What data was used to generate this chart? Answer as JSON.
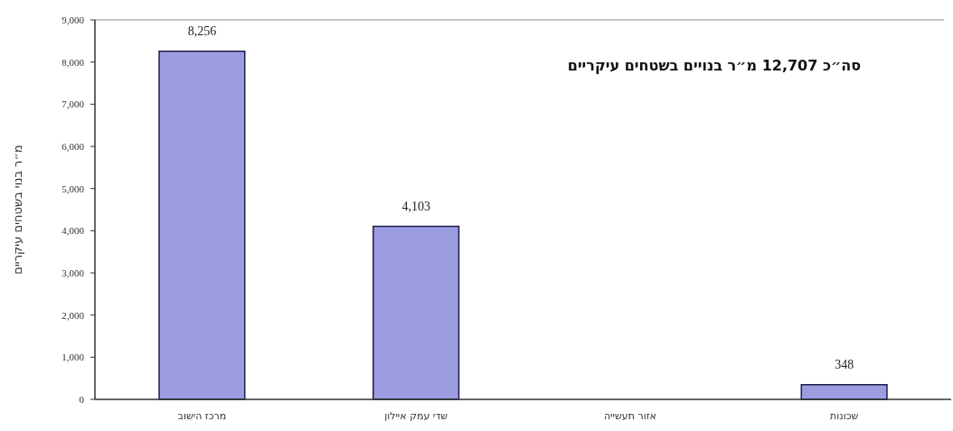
{
  "chart_data": {
    "type": "bar",
    "ylabel": "מ״ר בנוי בשטחים עיקריים",
    "annotations": [
      "סה״כ 12,707 מ״ר בנויים בשטחים עיקריים"
    ],
    "categories": [
      "מרכז הישוב",
      "שדי עמק איילון",
      "אזור תעשייה",
      "שכונות"
    ],
    "values": [
      8256,
      4103,
      null,
      348
    ],
    "value_labels": [
      "8,256",
      "4,103",
      null,
      "348"
    ],
    "color": "#9c9ce0",
    "ylim": [
      0,
      9000
    ],
    "yticks": [
      0,
      {
        "value": 1000,
        "label": "1,000"
      },
      {
        "value": 2000,
        "label": "2,000"
      },
      {
        "value": 3000,
        "label": "3,000"
      },
      {
        "value": 4000,
        "label": "4,000"
      },
      {
        "value": 5000,
        "label": "5,000"
      },
      {
        "value": 6000,
        "label": "6,000"
      },
      {
        "value": 7000,
        "label": "7,000"
      },
      {
        "value": 8000,
        "label": "8,000"
      },
      {
        "value": 9000,
        "label": "9,000"
      }
    ]
  }
}
